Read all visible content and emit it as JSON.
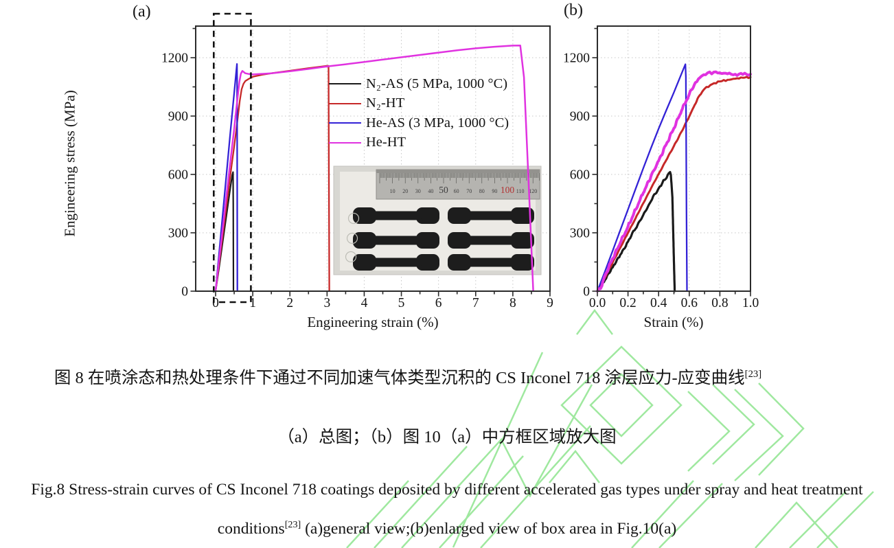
{
  "colors": {
    "axis": "#2b2b2b",
    "grid": "#c6c6c6",
    "tick_label": "#151515",
    "dashed_box": "#111111",
    "watermark": "#8fe58f"
  },
  "chart_data": [
    {
      "id": "a",
      "type": "line",
      "title": "(a)",
      "xlabel": "Engineering strain (%)",
      "ylabel": "Engineering stress (MPa)",
      "xlim": [
        -0.55,
        9
      ],
      "ylim": [
        0,
        1360
      ],
      "grid": true,
      "legend_position": "upper-center-inside",
      "xticks": [
        0,
        1,
        2,
        3,
        4,
        5,
        6,
        7,
        8,
        9
      ],
      "xtick_labels": [
        "0",
        "1",
        "2",
        "3",
        "4",
        "5",
        "6",
        "7",
        "8",
        "9"
      ],
      "x_minor_step": 0.5,
      "yticks": [
        0,
        300,
        600,
        900,
        1200
      ],
      "ytick_labels": [
        "0",
        "300",
        "600",
        "900",
        "1200"
      ],
      "y_minor_step": 150,
      "annotations": {
        "dashed_box": {
          "x0": -0.05,
          "x1": 0.95,
          "note": "enlarged in panel b"
        }
      },
      "series": [
        {
          "id": "n2-as",
          "name": "N₂-AS (5 MPa, 1000 °C)",
          "color": "#1a1a1a",
          "width": 2.2,
          "noise": 0,
          "x": [
            0,
            0.1,
            0.2,
            0.3,
            0.4,
            0.45,
            0.47,
            0.475,
            0.478,
            0.48
          ],
          "y": [
            0,
            130,
            265,
            400,
            535,
            598,
            612,
            450,
            150,
            0
          ]
        },
        {
          "id": "n2-ht",
          "name": "N₂-HT",
          "color": "#c62828",
          "width": 2.3,
          "noise": 0,
          "x": [
            0,
            0.1,
            0.2,
            0.3,
            0.4,
            0.5,
            0.55,
            0.6,
            0.65,
            0.7,
            0.75,
            0.8,
            0.9,
            1.0,
            1.25,
            1.5,
            2.0,
            2.5,
            3.0,
            3.04,
            3.05,
            3.06
          ],
          "y": [
            0,
            150,
            300,
            450,
            600,
            745,
            820,
            898,
            978,
            1038,
            1066,
            1080,
            1092,
            1102,
            1112,
            1120,
            1133,
            1146,
            1158,
            1158,
            600,
            0
          ]
        },
        {
          "id": "he-as",
          "name": "He-AS (3 MPa, 1000 °C)",
          "color": "#3322d6",
          "width": 2.3,
          "noise": 0,
          "x": [
            0,
            0.1,
            0.2,
            0.3,
            0.4,
            0.5,
            0.55,
            0.575,
            0.578,
            0.582,
            0.585
          ],
          "y": [
            0,
            205,
            410,
            615,
            820,
            1020,
            1120,
            1168,
            1100,
            400,
            0
          ]
        },
        {
          "id": "he-ht",
          "name": "He-HT",
          "color": "#e032e0",
          "width": 2.5,
          "noise": 0,
          "x": [
            0,
            0.1,
            0.2,
            0.3,
            0.4,
            0.5,
            0.55,
            0.6,
            0.64,
            0.68,
            0.72,
            0.76,
            0.8,
            0.9,
            1.0,
            1.5,
            2.0,
            2.5,
            3.0,
            3.5,
            4.0,
            4.5,
            5.0,
            5.5,
            6.0,
            6.5,
            7.0,
            7.5,
            8.0,
            8.2,
            8.3,
            8.45,
            8.55
          ],
          "y": [
            0,
            170,
            335,
            505,
            670,
            835,
            925,
            1010,
            1075,
            1118,
            1132,
            1126,
            1120,
            1116,
            1114,
            1120,
            1130,
            1142,
            1155,
            1166,
            1178,
            1190,
            1202,
            1214,
            1226,
            1238,
            1248,
            1256,
            1262,
            1263,
            1100,
            450,
            0
          ]
        }
      ]
    },
    {
      "id": "b",
      "type": "line",
      "title": "(b)",
      "xlabel": "Strain (%)",
      "ylabel": "",
      "xlim": [
        0,
        1.0
      ],
      "ylim": [
        0,
        1360
      ],
      "grid": true,
      "xticks": [
        0,
        0.2,
        0.4,
        0.6,
        0.8,
        1.0
      ],
      "xtick_labels": [
        "0.0",
        "0.2",
        "0.4",
        "0.6",
        "0.8",
        "1.0"
      ],
      "x_minor_step": 0.1,
      "yticks": [
        0,
        300,
        600,
        900,
        1200
      ],
      "ytick_labels": [
        "0",
        "300",
        "600",
        "900",
        "1200"
      ],
      "y_minor_step": 150,
      "series": [
        {
          "id": "n2-as",
          "name": "N₂-AS (5 MPa, 1000 °C)",
          "color": "#1a1a1a",
          "width": 3.2,
          "noise": 2.4,
          "x": [
            0,
            0.05,
            0.1,
            0.15,
            0.2,
            0.25,
            0.3,
            0.35,
            0.4,
            0.44,
            0.465,
            0.475,
            0.48,
            0.49,
            0.5,
            0.505
          ],
          "y": [
            0,
            58,
            122,
            188,
            255,
            322,
            392,
            462,
            528,
            572,
            605,
            612,
            598,
            480,
            150,
            0
          ]
        },
        {
          "id": "n2-ht",
          "name": "N₂-HT",
          "color": "#c62828",
          "width": 3.0,
          "noise": 1.2,
          "x": [
            0,
            0.05,
            0.1,
            0.15,
            0.2,
            0.25,
            0.3,
            0.35,
            0.4,
            0.45,
            0.5,
            0.55,
            0.6,
            0.63,
            0.66,
            0.7,
            0.75,
            0.8,
            0.85,
            0.9,
            0.95,
            1.0
          ],
          "y": [
            0,
            70,
            148,
            224,
            300,
            376,
            452,
            528,
            602,
            674,
            746,
            820,
            898,
            948,
            998,
            1040,
            1064,
            1078,
            1086,
            1092,
            1097,
            1100
          ]
        },
        {
          "id": "he-as",
          "name": "He-AS (3 MPa, 1000 °C)",
          "color": "#3322d6",
          "width": 2.3,
          "noise": 0,
          "x": [
            0,
            0.05,
            0.1,
            0.15,
            0.2,
            0.25,
            0.3,
            0.35,
            0.4,
            0.45,
            0.5,
            0.55,
            0.575,
            0.578,
            0.582,
            0.585
          ],
          "y": [
            0,
            102,
            208,
            315,
            420,
            527,
            632,
            735,
            835,
            930,
            1022,
            1118,
            1166,
            1100,
            400,
            0
          ]
        },
        {
          "id": "he-ht",
          "name": "He-HT",
          "color": "#e032e0",
          "width": 4.0,
          "noise": 2.4,
          "x": [
            0,
            0.03,
            0.05,
            0.1,
            0.15,
            0.2,
            0.25,
            0.3,
            0.35,
            0.4,
            0.45,
            0.5,
            0.55,
            0.6,
            0.64,
            0.68,
            0.72,
            0.76,
            0.8,
            0.85,
            0.9,
            0.95,
            1.0
          ],
          "y": [
            0,
            28,
            80,
            168,
            250,
            332,
            420,
            505,
            590,
            670,
            755,
            838,
            928,
            1012,
            1072,
            1105,
            1122,
            1126,
            1122,
            1117,
            1115,
            1114,
            1115
          ]
        }
      ]
    }
  ],
  "inset_photo": {
    "ruler_labels": [
      {
        "t": "10"
      },
      {
        "t": "20"
      },
      {
        "t": "30"
      },
      {
        "t": "40"
      },
      {
        "t": "50",
        "big": true
      },
      {
        "t": "60"
      },
      {
        "t": "70"
      },
      {
        "t": "80"
      },
      {
        "t": "90"
      },
      {
        "t": "100",
        "big": true,
        "red": true
      },
      {
        "t": "110"
      },
      {
        "t": "120"
      }
    ],
    "ruler_red_label_color": "#b23232",
    "specimen_rows": 3,
    "specimen_cols": 2
  },
  "captions": {
    "cn1": {
      "text": "图 8 在喷涂态和热处理条件下通过不同加速气体类型沉积的 CS Inconel 718 涂层应力-应变曲线",
      "sup": "[23]"
    },
    "cn2": {
      "text": "（a）总图；（b）图 10（a）中方框区域放大图"
    },
    "en1": {
      "text": "Fig.8 Stress-strain curves of CS Inconel 718 coatings deposited by different accelerated gas types under spray and heat treatment"
    },
    "en2": {
      "pre": "conditions",
      "sup": "[23]",
      "post": "  (a)general view;(b)enlarged view of box area in Fig.10(a)"
    }
  }
}
